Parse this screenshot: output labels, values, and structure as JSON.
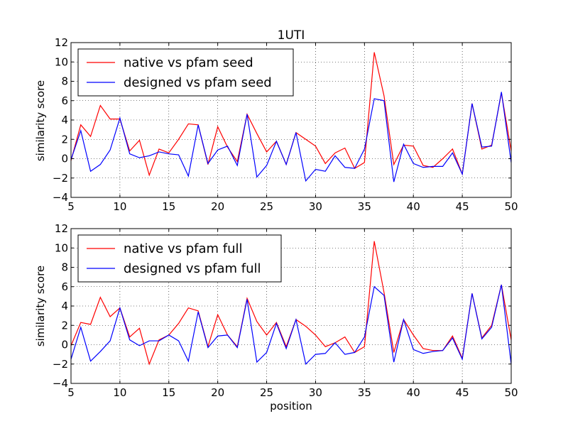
{
  "chart_data": [
    {
      "type": "line",
      "title": "1UTI",
      "xlabel": "",
      "ylabel": "similarity score",
      "xlim": [
        5,
        50
      ],
      "ylim": [
        -4,
        12
      ],
      "xticks": [
        5,
        10,
        15,
        20,
        25,
        30,
        35,
        40,
        45,
        50
      ],
      "yticks": [
        -4,
        -2,
        0,
        2,
        4,
        6,
        8,
        10,
        12
      ],
      "grid": true,
      "legend_placement": "top-left",
      "x": [
        5,
        6,
        7,
        8,
        9,
        10,
        11,
        12,
        13,
        14,
        15,
        16,
        17,
        18,
        19,
        20,
        21,
        22,
        23,
        24,
        25,
        26,
        27,
        28,
        29,
        30,
        31,
        32,
        33,
        34,
        35,
        36,
        37,
        38,
        39,
        40,
        41,
        42,
        43,
        44,
        45,
        46,
        47,
        48,
        49,
        50
      ],
      "series": [
        {
          "name": "native vs pfam seed",
          "color": "#ff0000",
          "values": [
            -0.2,
            3.5,
            2.3,
            5.5,
            4.1,
            4.1,
            0.8,
            1.9,
            -1.7,
            1.0,
            0.6,
            2.0,
            3.6,
            3.5,
            -0.6,
            3.3,
            1.2,
            -0.3,
            4.6,
            2.6,
            0.7,
            1.8,
            -0.6,
            2.7,
            2.0,
            1.3,
            -0.5,
            0.6,
            1.1,
            -1.0,
            -0.4,
            11.0,
            6.5,
            -0.6,
            1.4,
            1.3,
            -0.7,
            -0.9,
            0.0,
            1.0,
            -1.6,
            5.7,
            1.0,
            1.4,
            6.8,
            0.8
          ]
        },
        {
          "name": "designed vs pfam seed",
          "color": "#0000ff",
          "values": [
            -0.1,
            2.9,
            -1.3,
            -0.6,
            0.9,
            4.2,
            0.5,
            0.1,
            0.3,
            0.7,
            0.5,
            0.4,
            -1.8,
            3.5,
            -0.5,
            0.9,
            1.3,
            -0.7,
            4.6,
            -1.9,
            -0.7,
            1.8,
            -0.6,
            2.7,
            -2.3,
            -1.1,
            -1.3,
            0.3,
            -0.9,
            -1.0,
            1.0,
            6.2,
            6.0,
            -2.4,
            1.5,
            -0.5,
            -0.9,
            -0.8,
            -0.8,
            0.6,
            -1.6,
            5.7,
            1.2,
            1.3,
            6.9,
            -0.4
          ]
        }
      ]
    },
    {
      "type": "line",
      "title": "",
      "xlabel": "position",
      "ylabel": "similarity score",
      "xlim": [
        5,
        50
      ],
      "ylim": [
        -4,
        12
      ],
      "xticks": [
        5,
        10,
        15,
        20,
        25,
        30,
        35,
        40,
        45,
        50
      ],
      "yticks": [
        -4,
        -2,
        0,
        2,
        4,
        6,
        8,
        10,
        12
      ],
      "grid": true,
      "legend_placement": "top-left",
      "x": [
        5,
        6,
        7,
        8,
        9,
        10,
        11,
        12,
        13,
        14,
        15,
        16,
        17,
        18,
        19,
        20,
        21,
        22,
        23,
        24,
        25,
        26,
        27,
        28,
        29,
        30,
        31,
        32,
        33,
        34,
        35,
        36,
        37,
        38,
        39,
        40,
        41,
        42,
        43,
        44,
        45,
        46,
        47,
        48,
        49,
        50
      ],
      "series": [
        {
          "name": "native vs pfam full",
          "color": "#ff0000",
          "values": [
            -0.1,
            2.3,
            2.1,
            4.9,
            2.9,
            3.8,
            0.8,
            1.7,
            -2.0,
            0.5,
            1.0,
            2.2,
            3.8,
            3.5,
            -0.2,
            3.1,
            1.0,
            -0.2,
            4.8,
            2.4,
            1.0,
            2.3,
            -0.2,
            2.6,
            1.9,
            1.0,
            -0.2,
            0.2,
            0.8,
            -0.8,
            -0.2,
            10.7,
            5.4,
            -0.8,
            2.6,
            1.0,
            -0.4,
            -0.6,
            -0.6,
            0.9,
            -1.4,
            5.3,
            0.7,
            2.0,
            6.2,
            0.5
          ]
        },
        {
          "name": "designed vs pfam full",
          "color": "#0000ff",
          "values": [
            -1.5,
            1.8,
            -1.7,
            -0.7,
            0.4,
            3.8,
            0.5,
            -0.1,
            0.4,
            0.4,
            1.0,
            0.4,
            -1.7,
            3.4,
            -0.3,
            0.9,
            1.0,
            -0.3,
            4.7,
            -1.8,
            -0.8,
            2.2,
            -0.4,
            2.6,
            -2.0,
            -1.0,
            -0.9,
            0.2,
            -1.0,
            -0.8,
            0.8,
            6.0,
            5.1,
            -1.8,
            2.6,
            -0.5,
            -0.9,
            -0.7,
            -0.6,
            0.7,
            -1.5,
            5.3,
            0.6,
            1.8,
            6.2,
            -2.0
          ]
        }
      ]
    }
  ]
}
